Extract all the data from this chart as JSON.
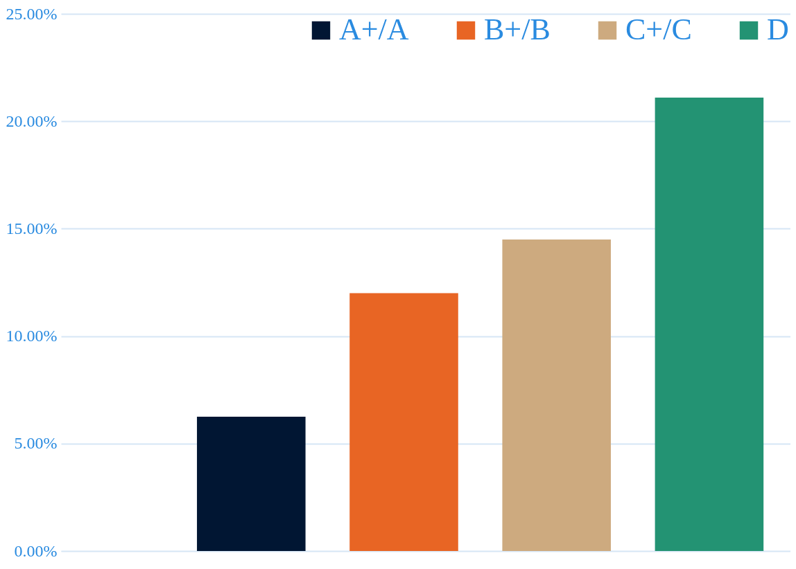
{
  "chart_data": {
    "type": "bar",
    "categories": [
      null
    ],
    "series": [
      {
        "name": "A+/A",
        "color": "#011633",
        "values": [
          6.25
        ]
      },
      {
        "name": "B+/B",
        "color": "#e86524",
        "values": [
          12.0
        ]
      },
      {
        "name": "C+/C",
        "color": "#cdaa7f",
        "values": [
          14.5
        ]
      },
      {
        "name": "D",
        "color": "#239373",
        "values": [
          21.1
        ]
      }
    ],
    "ylim": [
      0,
      25
    ],
    "yticks": [
      {
        "value": 0,
        "label": "0.00%"
      },
      {
        "value": 5,
        "label": "5.00%"
      },
      {
        "value": 10,
        "label": "10.00%"
      },
      {
        "value": 15,
        "label": "15.00%"
      },
      {
        "value": 20,
        "label": "20.00%"
      },
      {
        "value": 25,
        "label": "25.00%"
      }
    ],
    "grid": "y",
    "legend": "top right",
    "tick_labels": "y"
  }
}
